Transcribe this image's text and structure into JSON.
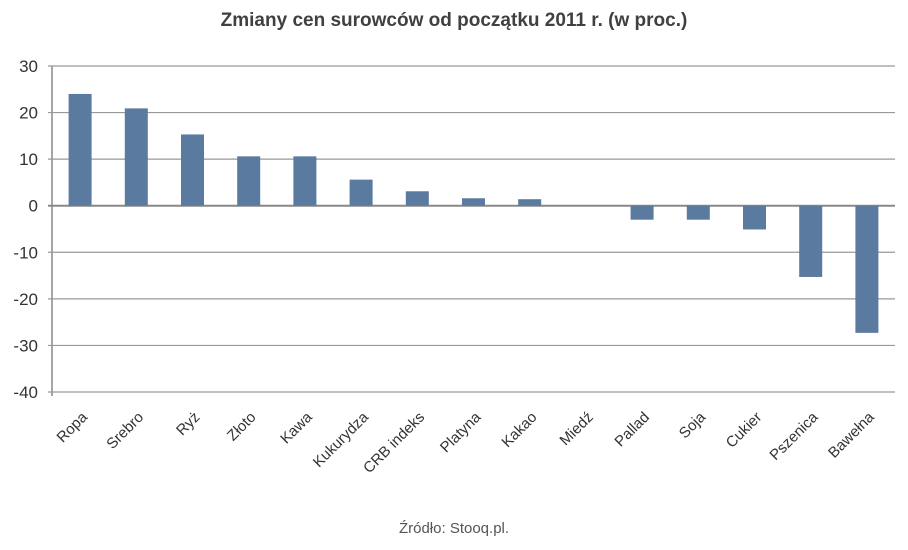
{
  "chart_data": {
    "type": "bar",
    "title": "Zmiany cen surowców od początku 2011 r. (w proc.)",
    "source": "Źródło: Stooq.pl.",
    "xlabel": "",
    "ylabel": "",
    "ylim": [
      -40,
      30
    ],
    "yticks": [
      30,
      20,
      10,
      0,
      -10,
      -20,
      -30,
      -40
    ],
    "grid": true,
    "bar_color": "#5b7aa0",
    "categories": [
      "Ropa",
      "Srebro",
      "Ryż",
      "Złoto",
      "Kawa",
      "Kukurydza",
      "CRB indeks",
      "Platyna",
      "Kakao",
      "Miedź",
      "Pallad",
      "Soja",
      "Cukier",
      "Pszenica",
      "Bawełna"
    ],
    "values": [
      24.0,
      20.9,
      15.3,
      10.6,
      10.6,
      5.6,
      3.1,
      1.6,
      1.4,
      0,
      -3.0,
      -3.0,
      -5.1,
      -15.3,
      -27.3
    ]
  }
}
